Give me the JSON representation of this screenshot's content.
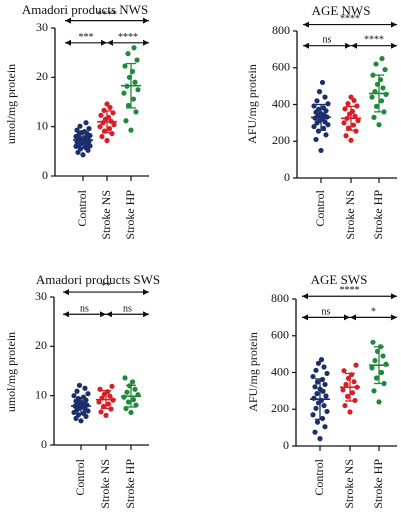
{
  "colors": {
    "control": "#1c2f6b",
    "stroke_ns": "#d62027",
    "stroke_hp": "#1f8a3b",
    "axis": "#111111"
  },
  "chart_data": [
    {
      "type": "scatter",
      "title": "Amadori products NWS",
      "ylabel": "umol/mg protein",
      "ylim": [
        0,
        30
      ],
      "yticks": [
        "0",
        "10",
        "20",
        "30"
      ],
      "categories": [
        "Control",
        "Stroke NS",
        "Stroke HP"
      ],
      "groups": [
        {
          "category": "Control",
          "color_key": "control",
          "mean": 7.3,
          "sd": 1.6,
          "values": [
            4.3,
            4.8,
            5.2,
            5.5,
            5.8,
            6.0,
            6.1,
            6.3,
            6.5,
            6.6,
            6.8,
            6.9,
            7.0,
            7.1,
            7.2,
            7.3,
            7.4,
            7.5,
            7.6,
            7.8,
            8.0,
            8.2,
            8.4,
            8.6,
            8.8,
            9.0,
            9.3,
            9.6,
            10.1,
            10.8
          ]
        },
        {
          "category": "Stroke NS",
          "color_key": "stroke_ns",
          "mean": 11.0,
          "sd": 2.2,
          "values": [
            7.2,
            8.0,
            8.6,
            9.1,
            9.6,
            10.0,
            10.4,
            10.8,
            11.1,
            11.5,
            11.9,
            12.3,
            12.8,
            13.3,
            13.9,
            14.6
          ]
        },
        {
          "category": "Stroke HP",
          "color_key": "stroke_hp",
          "mean": 18.3,
          "sd": 4.5,
          "values": [
            9.3,
            11.2,
            13.0,
            14.3,
            15.6,
            16.8,
            17.5,
            18.2,
            19.0,
            20.0,
            21.2,
            22.3,
            23.5,
            24.8,
            26.0
          ]
        }
      ],
      "brackets": [
        {
          "from": 0,
          "to": 2,
          "label": "****",
          "y": 31.5
        },
        {
          "from": 0,
          "to": 1,
          "label": "***",
          "y": 27.0
        },
        {
          "from": 1,
          "to": 2,
          "label": "****",
          "y": 27.0
        }
      ]
    },
    {
      "type": "scatter",
      "title": "AGE NWS",
      "ylabel": "AFU/mg protein",
      "ylim": [
        0,
        800
      ],
      "yticks": [
        "0",
        "200",
        "400",
        "600",
        "800"
      ],
      "categories": [
        "Control",
        "Stroke NS",
        "Stroke HP"
      ],
      "groups": [
        {
          "category": "Control",
          "color_key": "control",
          "mean": 330,
          "sd": 70,
          "values": [
            150,
            210,
            235,
            255,
            270,
            280,
            290,
            300,
            305,
            312,
            320,
            326,
            332,
            338,
            344,
            350,
            358,
            366,
            374,
            382,
            392,
            404,
            420,
            440,
            470,
            520
          ]
        },
        {
          "category": "Stroke NS",
          "color_key": "stroke_ns",
          "mean": 325,
          "sd": 65,
          "values": [
            205,
            230,
            255,
            272,
            288,
            300,
            312,
            324,
            336,
            348,
            362,
            376,
            392,
            405,
            422,
            440
          ]
        },
        {
          "category": "Stroke HP",
          "color_key": "stroke_hp",
          "mean": 460,
          "sd": 100,
          "values": [
            290,
            330,
            360,
            390,
            420,
            440,
            455,
            470,
            490,
            510,
            535,
            560,
            590,
            620,
            650
          ]
        }
      ],
      "brackets": [
        {
          "from": 0,
          "to": 2,
          "label": "****",
          "y": 835
        },
        {
          "from": 0,
          "to": 1,
          "label": "ns",
          "y": 720
        },
        {
          "from": 1,
          "to": 2,
          "label": "****",
          "y": 720
        }
      ]
    },
    {
      "type": "scatter",
      "title": "Amadori products SWS",
      "ylabel": "umol/mg protein",
      "ylim": [
        0,
        30
      ],
      "yticks": [
        "0",
        "10",
        "20",
        "30"
      ],
      "categories": [
        "Control",
        "Stroke NS",
        "Stroke HP"
      ],
      "groups": [
        {
          "category": "Control",
          "color_key": "control",
          "mean": 7.9,
          "sd": 1.7,
          "values": [
            4.9,
            5.4,
            5.8,
            6.1,
            6.4,
            6.6,
            6.9,
            7.1,
            7.3,
            7.5,
            7.7,
            7.9,
            8.1,
            8.3,
            8.5,
            8.7,
            8.9,
            9.1,
            9.4,
            9.7,
            10.0,
            10.4,
            10.9,
            11.5,
            12.1
          ]
        },
        {
          "category": "Stroke NS",
          "color_key": "stroke_ns",
          "mean": 9.2,
          "sd": 1.8,
          "values": [
            6.0,
            6.7,
            7.3,
            7.8,
            8.3,
            8.7,
            9.1,
            9.5,
            9.9,
            10.3,
            10.8,
            11.3,
            11.9
          ]
        },
        {
          "category": "Stroke HP",
          "color_key": "stroke_hp",
          "mean": 9.9,
          "sd": 2.2,
          "values": [
            6.6,
            7.4,
            8.1,
            8.7,
            9.2,
            9.7,
            10.2,
            10.7,
            11.3,
            12.0,
            12.8,
            13.6
          ]
        }
      ],
      "brackets": [
        {
          "from": 0,
          "to": 2,
          "label": "**",
          "y": 31.0
        },
        {
          "from": 0,
          "to": 1,
          "label": "ns",
          "y": 26.5
        },
        {
          "from": 1,
          "to": 2,
          "label": "ns",
          "y": 26.5
        }
      ]
    },
    {
      "type": "scatter",
      "title": "AGE SWS",
      "ylabel": "AFU/mg protein",
      "ylim": [
        0,
        800
      ],
      "yticks": [
        "0",
        "200",
        "400",
        "600",
        "800"
      ],
      "categories": [
        "Control",
        "Stroke NS",
        "Stroke HP"
      ],
      "groups": [
        {
          "category": "Control",
          "color_key": "control",
          "mean": 255,
          "sd": 110,
          "values": [
            40,
            75,
            105,
            130,
            150,
            170,
            188,
            205,
            220,
            235,
            248,
            260,
            272,
            285,
            298,
            310,
            322,
            335,
            348,
            362,
            378,
            395,
            412,
            430,
            450,
            470
          ]
        },
        {
          "category": "Stroke NS",
          "color_key": "stroke_ns",
          "mean": 320,
          "sd": 75,
          "values": [
            185,
            220,
            248,
            270,
            290,
            305,
            320,
            335,
            350,
            368,
            388,
            410,
            440
          ]
        },
        {
          "category": "Stroke HP",
          "color_key": "stroke_hp",
          "mean": 440,
          "sd": 100,
          "values": [
            240,
            300,
            340,
            370,
            400,
            425,
            445,
            465,
            490,
            515,
            540,
            565
          ]
        }
      ],
      "brackets": [
        {
          "from": 0,
          "to": 2,
          "label": "****",
          "y": 815
        },
        {
          "from": 0,
          "to": 1,
          "label": "ns",
          "y": 700
        },
        {
          "from": 1,
          "to": 2,
          "label": "*",
          "y": 700
        }
      ]
    }
  ]
}
